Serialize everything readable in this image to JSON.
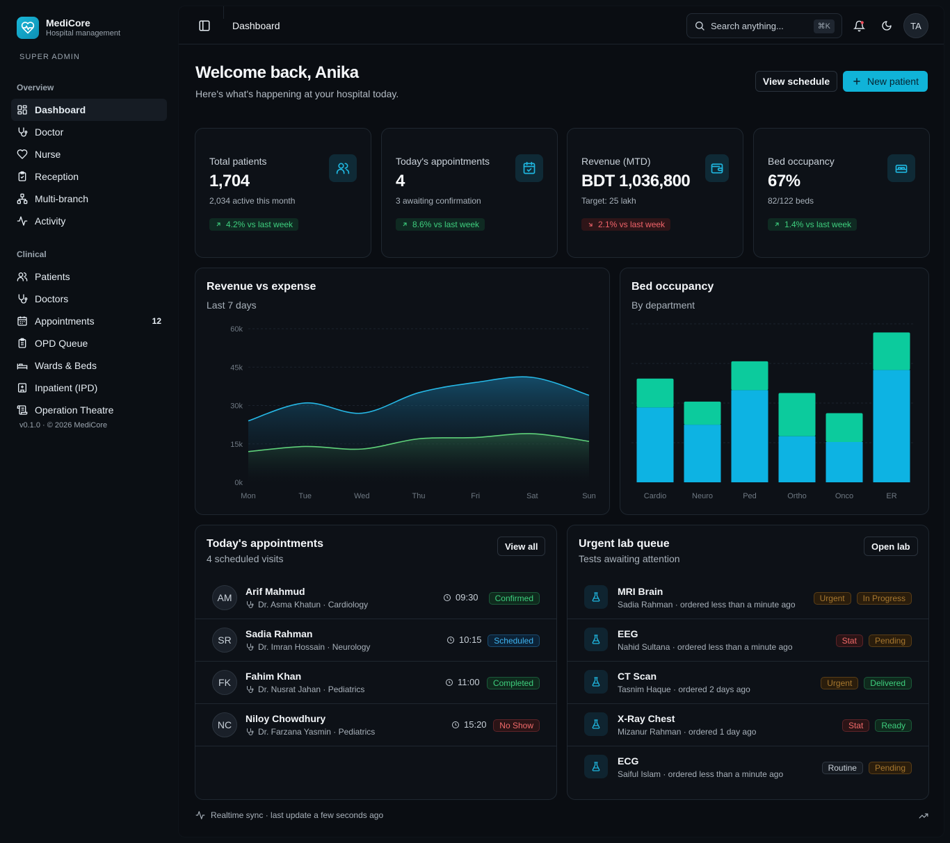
{
  "brand": {
    "name": "MediCore",
    "subtitle": "Hospital management",
    "role": "SUPER ADMIN"
  },
  "sidebar": {
    "sections": [
      {
        "label": "Overview",
        "items": [
          {
            "label": "Dashboard",
            "icon": "grid-icon",
            "active": true
          },
          {
            "label": "Doctor",
            "icon": "stethoscope-icon"
          },
          {
            "label": "Nurse",
            "icon": "heart-icon"
          },
          {
            "label": "Reception",
            "icon": "clipboard-icon"
          },
          {
            "label": "Multi-branch",
            "icon": "network-icon"
          },
          {
            "label": "Activity",
            "icon": "activity-icon"
          }
        ]
      },
      {
        "label": "Clinical",
        "items": [
          {
            "label": "Patients",
            "icon": "users-icon"
          },
          {
            "label": "Doctors",
            "icon": "stethoscope-icon"
          },
          {
            "label": "Appointments",
            "icon": "calendar-icon",
            "badge": "12"
          },
          {
            "label": "OPD Queue",
            "icon": "clipboard-icon"
          },
          {
            "label": "Wards & Beds",
            "icon": "bed-icon"
          },
          {
            "label": "Inpatient (IPD)",
            "icon": "hospital-icon"
          },
          {
            "label": "Operation Theatre",
            "icon": "scroll-icon"
          }
        ]
      }
    ],
    "version": "v0.1.0 · © 2026 MediCore"
  },
  "topbar": {
    "title": "Dashboard",
    "search_placeholder": "Search anything...",
    "shortcut": "⌘K",
    "avatar": "TA"
  },
  "header": {
    "title": "Welcome back, Anika",
    "subtitle": "Here's what's happening at your hospital today.",
    "view_schedule": "View schedule",
    "new_patient": "New patient"
  },
  "stats": [
    {
      "label": "Total patients",
      "value": "1,704",
      "sub": "2,034 active this month",
      "trend": "4.2% vs last week",
      "dir": "up",
      "icon": "users-icon"
    },
    {
      "label": "Today's appointments",
      "value": "4",
      "sub": "3 awaiting confirmation",
      "trend": "8.6% vs last week",
      "dir": "up",
      "icon": "calendar-check-icon"
    },
    {
      "label": "Revenue (MTD)",
      "value": "BDT 1,036,800",
      "sub": "Target: 25 lakh",
      "trend": "2.1% vs last week",
      "dir": "down",
      "icon": "wallet-icon"
    },
    {
      "label": "Bed occupancy",
      "value": "67%",
      "sub": "82/122 beds",
      "trend": "1.4% vs last week",
      "dir": "up",
      "icon": "bed-icon"
    }
  ],
  "revenue_chart": {
    "title": "Revenue vs expense",
    "subtitle": "Last 7 days"
  },
  "bed_chart": {
    "title": "Bed occupancy",
    "subtitle": "By department"
  },
  "chart_data": [
    {
      "type": "area",
      "x": [
        "Mon",
        "Tue",
        "Wed",
        "Thu",
        "Fri",
        "Sat",
        "Sun"
      ],
      "yticks": [
        "0k",
        "15k",
        "30k",
        "45k",
        "60k"
      ],
      "ylim": [
        0,
        60000
      ],
      "grid": true,
      "series": [
        {
          "values": [
            24000,
            31000,
            27000,
            35000,
            39000,
            41000,
            34000
          ],
          "color": "#26b8e6"
        },
        {
          "values": [
            12000,
            14000,
            13000,
            17000,
            17500,
            19000,
            16000
          ],
          "color": "#5fd17a"
        }
      ]
    },
    {
      "type": "bar",
      "stacked": true,
      "categories": [
        "Cardio",
        "Neuro",
        "Ped",
        "Ortho",
        "Onco",
        "ER"
      ],
      "series": [
        {
          "values": [
            26,
            20,
            32,
            16,
            14,
            39
          ],
          "color": "#0db3e3"
        },
        {
          "values": [
            10,
            8,
            10,
            15,
            10,
            13
          ],
          "color": "#0ccb9d"
        }
      ],
      "ylim": [
        0,
        55
      ],
      "grid": true
    }
  ],
  "appointments": {
    "title": "Today's appointments",
    "subtitle": "4 scheduled visits",
    "view_all": "View all",
    "rows": [
      {
        "initials": "AM",
        "name": "Arif Mahmud",
        "meta": "Dr. Asma Khatun · Cardiology",
        "time": "09:30",
        "status": "Confirmed",
        "kind": "green"
      },
      {
        "initials": "SR",
        "name": "Sadia Rahman",
        "meta": "Dr. Imran Hossain · Neurology",
        "time": "10:15",
        "status": "Scheduled",
        "kind": "blue"
      },
      {
        "initials": "FK",
        "name": "Fahim Khan",
        "meta": "Dr. Nusrat Jahan · Pediatrics",
        "time": "11:00",
        "status": "Completed",
        "kind": "green"
      },
      {
        "initials": "NC",
        "name": "Niloy Chowdhury",
        "meta": "Dr. Farzana Yasmin · Pediatrics",
        "time": "15:20",
        "status": "No Show",
        "kind": "red"
      }
    ]
  },
  "lab": {
    "title": "Urgent lab queue",
    "subtitle": "Tests awaiting attention",
    "open_lab": "Open lab",
    "rows": [
      {
        "name": "MRI Brain",
        "meta": "Sadia Rahman · ordered less than a minute ago",
        "priority": "Urgent",
        "pkind": "amber",
        "status": "In Progress",
        "skind": "amber"
      },
      {
        "name": "EEG",
        "meta": "Nahid Sultana · ordered less than a minute ago",
        "priority": "Stat",
        "pkind": "red",
        "status": "Pending",
        "skind": "amber"
      },
      {
        "name": "CT Scan",
        "meta": "Tasnim Haque · ordered 2 days ago",
        "priority": "Urgent",
        "pkind": "amber",
        "status": "Delivered",
        "skind": "green"
      },
      {
        "name": "X-Ray Chest",
        "meta": "Mizanur Rahman · ordered 1 day ago",
        "priority": "Stat",
        "pkind": "red",
        "status": "Ready",
        "skind": "green"
      },
      {
        "name": "ECG",
        "meta": "Saiful Islam · ordered less than a minute ago",
        "priority": "Routine",
        "pkind": "gray",
        "status": "Pending",
        "skind": "amber"
      }
    ]
  },
  "footer": {
    "text": "Realtime sync · last update a few seconds ago"
  }
}
